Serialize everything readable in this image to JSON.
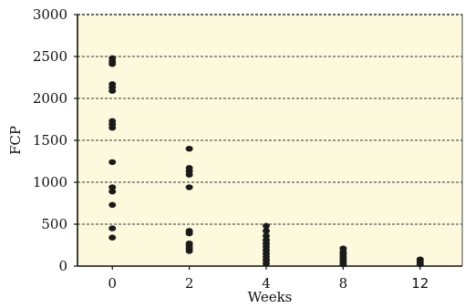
{
  "chart_data": {
    "type": "scatter",
    "title": "",
    "xlabel": "Weeks",
    "ylabel": "FCP",
    "categories": [
      "0",
      "2",
      "4",
      "8",
      "12"
    ],
    "ylim": [
      0,
      3000
    ],
    "yticks": [
      "0",
      "500",
      "1000",
      "1500",
      "2000",
      "2500",
      "3000"
    ],
    "grid": "horizontal dashed",
    "plot_background": "#fdf9dc",
    "marker_color": "#1a1a1a",
    "series": [
      {
        "points": [
          {
            "x": "0",
            "y": 2480
          },
          {
            "x": "0",
            "y": 2440
          },
          {
            "x": "0",
            "y": 2410
          },
          {
            "x": "0",
            "y": 2170
          },
          {
            "x": "0",
            "y": 2130
          },
          {
            "x": "0",
            "y": 2090
          },
          {
            "x": "0",
            "y": 1730
          },
          {
            "x": "0",
            "y": 1690
          },
          {
            "x": "0",
            "y": 1650
          },
          {
            "x": "0",
            "y": 1240
          },
          {
            "x": "0",
            "y": 940
          },
          {
            "x": "0",
            "y": 890
          },
          {
            "x": "0",
            "y": 730
          },
          {
            "x": "0",
            "y": 450
          },
          {
            "x": "0",
            "y": 340
          },
          {
            "x": "2",
            "y": 1400
          },
          {
            "x": "2",
            "y": 1170
          },
          {
            "x": "2",
            "y": 1130
          },
          {
            "x": "2",
            "y": 1090
          },
          {
            "x": "2",
            "y": 940
          },
          {
            "x": "2",
            "y": 420
          },
          {
            "x": "2",
            "y": 390
          },
          {
            "x": "2",
            "y": 270
          },
          {
            "x": "2",
            "y": 240
          },
          {
            "x": "2",
            "y": 210
          },
          {
            "x": "2",
            "y": 180
          },
          {
            "x": "4",
            "y": 480
          },
          {
            "x": "4",
            "y": 420
          },
          {
            "x": "4",
            "y": 360
          },
          {
            "x": "4",
            "y": 310
          },
          {
            "x": "4",
            "y": 270
          },
          {
            "x": "4",
            "y": 230
          },
          {
            "x": "4",
            "y": 190
          },
          {
            "x": "4",
            "y": 150
          },
          {
            "x": "4",
            "y": 110
          },
          {
            "x": "4",
            "y": 70
          },
          {
            "x": "4",
            "y": 30
          },
          {
            "x": "8",
            "y": 210
          },
          {
            "x": "8",
            "y": 170
          },
          {
            "x": "8",
            "y": 140
          },
          {
            "x": "8",
            "y": 110
          },
          {
            "x": "8",
            "y": 80
          },
          {
            "x": "8",
            "y": 50
          },
          {
            "x": "8",
            "y": 20
          },
          {
            "x": "12",
            "y": 80
          },
          {
            "x": "12",
            "y": 50
          },
          {
            "x": "12",
            "y": 20
          }
        ]
      }
    ]
  }
}
